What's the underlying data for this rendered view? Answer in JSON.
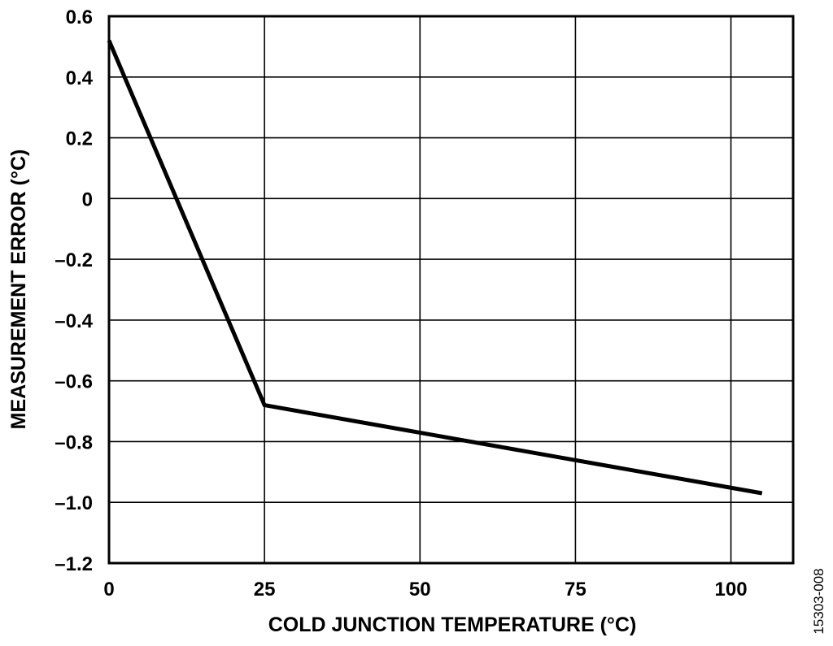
{
  "chart_data": {
    "type": "line",
    "title": "",
    "xlabel": "COLD JUNCTION TEMPERATURE (°C)",
    "ylabel": "MEASUREMENT ERROR (°C)",
    "xlim": [
      0,
      110
    ],
    "ylim": [
      -1.2,
      0.6
    ],
    "x_ticks": [
      0,
      25,
      50,
      75,
      100
    ],
    "x_tick_labels": [
      "0",
      "25",
      "50",
      "75",
      "100"
    ],
    "y_ticks": [
      0.6,
      0.4,
      0.2,
      0,
      -0.2,
      -0.4,
      -0.6,
      -0.8,
      -1.0,
      -1.2
    ],
    "y_tick_labels": [
      "0.6",
      "0.4",
      "0.2",
      "0",
      "–0.2",
      "–0.4",
      "–0.6",
      "–0.8",
      "–1.0",
      "–1.2"
    ],
    "grid": true,
    "line_color": "#000000",
    "series": [
      {
        "x": [
          0,
          25,
          105
        ],
        "y": [
          0.52,
          -0.68,
          -0.97
        ]
      }
    ]
  },
  "figure_id": "15303-008"
}
